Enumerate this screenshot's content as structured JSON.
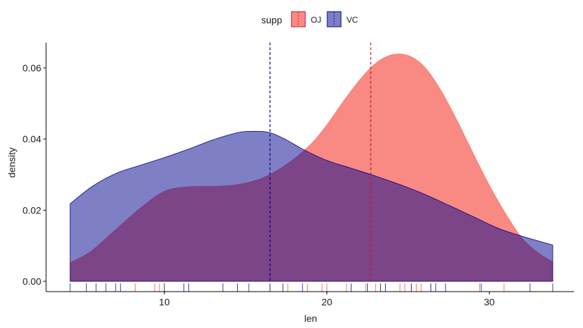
{
  "chart_data": {
    "type": "area",
    "subtype": "density",
    "xlabel": "len",
    "ylabel": "density",
    "xlim": [
      4.2,
      33.9
    ],
    "ylim": [
      0,
      0.067
    ],
    "x_ticks": [
      10,
      20,
      30
    ],
    "y_ticks": [
      0.0,
      0.02,
      0.04,
      0.06
    ],
    "y_tick_labels": [
      "0.00",
      "0.02",
      "0.04",
      "0.06"
    ],
    "grid": false,
    "legend": {
      "title": "supp",
      "position": "top"
    },
    "series": [
      {
        "name": "OJ",
        "color": "#F8766D",
        "fill_alpha": 0.85,
        "mean": 22.7,
        "x": [
          4.2,
          5.5,
          7,
          8.5,
          10,
          11.5,
          13,
          14.5,
          16,
          17.5,
          19,
          20,
          21,
          22,
          23,
          24,
          25,
          26,
          27,
          28,
          29,
          30,
          31,
          32,
          33,
          33.9
        ],
        "y": [
          0.0052,
          0.0085,
          0.0145,
          0.0205,
          0.0253,
          0.0266,
          0.0267,
          0.0272,
          0.029,
          0.0328,
          0.0385,
          0.044,
          0.0505,
          0.0565,
          0.0613,
          0.0637,
          0.0635,
          0.0603,
          0.0538,
          0.0453,
          0.036,
          0.027,
          0.019,
          0.0122,
          0.008,
          0.0055
        ],
        "rug": [
          8.2,
          9.4,
          9.7,
          10.0,
          14.5,
          15.2,
          16.5,
          17.6,
          18.8,
          19.7,
          20.0,
          21.2,
          21.5,
          22.4,
          23.0,
          23.3,
          23.6,
          24.5,
          24.8,
          25.2,
          25.5,
          25.8,
          26.4,
          27.3,
          29.4,
          30.9
        ]
      },
      {
        "name": "VC",
        "color": "#00008B",
        "fill_alpha": 0.5,
        "mean": 16.5,
        "x": [
          4.2,
          5.5,
          7,
          8.5,
          10,
          11.5,
          13,
          14.5,
          15.5,
          16.5,
          17.5,
          18.5,
          20,
          21.5,
          23,
          24.5,
          26,
          27.5,
          29,
          30.5,
          32,
          33.9
        ],
        "y": [
          0.0218,
          0.0265,
          0.0303,
          0.0326,
          0.0348,
          0.0372,
          0.0398,
          0.0418,
          0.0422,
          0.0418,
          0.0398,
          0.0372,
          0.034,
          0.0318,
          0.0296,
          0.0272,
          0.0245,
          0.0214,
          0.0182,
          0.015,
          0.0127,
          0.0102
        ],
        "rug": [
          4.2,
          5.2,
          5.8,
          6.4,
          7.0,
          7.3,
          10.0,
          11.2,
          11.5,
          13.6,
          14.5,
          15.2,
          16.5,
          17.3,
          18.5,
          21.5,
          22.5,
          23.3,
          23.6,
          25.2,
          26.4,
          26.7,
          27.3,
          29.5,
          32.5,
          33.9
        ]
      }
    ]
  }
}
